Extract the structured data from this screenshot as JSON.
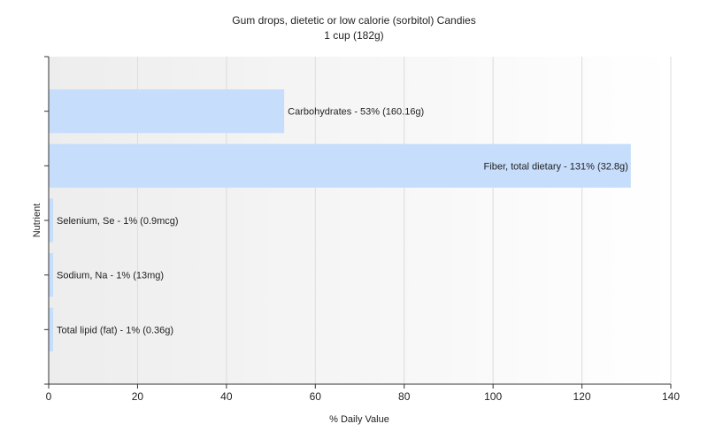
{
  "chart_data": {
    "type": "bar",
    "orientation": "horizontal",
    "title": "Gum drops, dietetic or low calorie (sorbitol) Candies",
    "subtitle": "1 cup (182g)",
    "xlabel": "% Daily Value",
    "ylabel": "Nutrient",
    "xlim": [
      0,
      140
    ],
    "xticks": [
      0,
      20,
      40,
      60,
      80,
      100,
      120,
      140
    ],
    "grid": true,
    "bar_color": "#c6ddfc",
    "categories": [
      "Carbohydrates",
      "Fiber, total dietary",
      "Selenium, Se",
      "Sodium, Na",
      "Total lipid (fat)"
    ],
    "values": [
      53,
      131,
      1,
      1,
      1
    ],
    "labels": [
      "Carbohydrates - 53% (160.16g)",
      "Fiber, total dietary - 131% (32.8g)",
      "Selenium, Se - 1% (0.9mcg)",
      "Sodium, Na - 1% (13mg)",
      "Total lipid (fat) - 1% (0.36g)"
    ]
  }
}
